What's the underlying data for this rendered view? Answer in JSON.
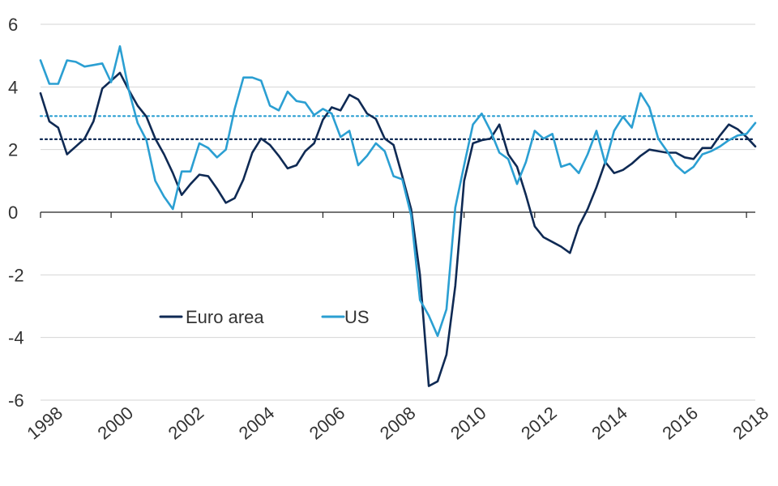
{
  "chart_data": {
    "type": "line",
    "title": "",
    "xlabel": "",
    "ylabel": "",
    "xlim": [
      1998.0,
      2018.25
    ],
    "ylim": [
      -6,
      6
    ],
    "x_ticks": [
      "1998",
      "2000",
      "2002",
      "2004",
      "2006",
      "2008",
      "2010",
      "2012",
      "2014",
      "2016",
      "2018"
    ],
    "y_ticks": [
      "-6",
      "-4",
      "-2",
      "0",
      "2",
      "4",
      "6"
    ],
    "grid": "horizontal",
    "legend_position": "lower-left",
    "series": [
      {
        "name": "Euro area",
        "color": "#0f2a54",
        "x": [
          1998.0,
          1998.25,
          1998.5,
          1998.75,
          1999.0,
          1999.25,
          1999.5,
          1999.75,
          2000.0,
          2000.25,
          2000.5,
          2000.75,
          2001.0,
          2001.25,
          2001.5,
          2001.75,
          2002.0,
          2002.25,
          2002.5,
          2002.75,
          2003.0,
          2003.25,
          2003.5,
          2003.75,
          2004.0,
          2004.25,
          2004.5,
          2004.75,
          2005.0,
          2005.25,
          2005.5,
          2005.75,
          2006.0,
          2006.25,
          2006.5,
          2006.75,
          2007.0,
          2007.25,
          2007.5,
          2007.75,
          2008.0,
          2008.25,
          2008.5,
          2008.75,
          2009.0,
          2009.25,
          2009.5,
          2009.75,
          2010.0,
          2010.25,
          2010.5,
          2010.75,
          2011.0,
          2011.25,
          2011.5,
          2011.75,
          2012.0,
          2012.25,
          2012.5,
          2012.75,
          2013.0,
          2013.25,
          2013.5,
          2013.75,
          2014.0,
          2014.25,
          2014.5,
          2014.75,
          2015.0,
          2015.25,
          2015.5,
          2015.75,
          2016.0,
          2016.25,
          2016.5,
          2016.75,
          2017.0,
          2017.25,
          2017.5,
          2017.75,
          2018.0,
          2018.25
        ],
        "values": [
          3.8,
          2.9,
          2.7,
          1.85,
          2.1,
          2.35,
          2.9,
          3.95,
          4.2,
          4.45,
          3.9,
          3.4,
          3.05,
          2.35,
          1.85,
          1.25,
          0.55,
          0.9,
          1.2,
          1.15,
          0.75,
          0.3,
          0.45,
          1.05,
          1.9,
          2.35,
          2.15,
          1.8,
          1.4,
          1.5,
          1.95,
          2.2,
          2.95,
          3.35,
          3.25,
          3.75,
          3.6,
          3.15,
          2.98,
          2.35,
          2.15,
          1.15,
          0.1,
          -2.0,
          -5.55,
          -5.4,
          -4.55,
          -2.35,
          1.0,
          2.2,
          2.3,
          2.35,
          2.8,
          1.85,
          1.45,
          0.55,
          -0.45,
          -0.8,
          -0.95,
          -1.1,
          -1.3,
          -0.45,
          0.1,
          0.8,
          1.6,
          1.25,
          1.35,
          1.55,
          1.8,
          2.0,
          1.95,
          1.9,
          1.9,
          1.75,
          1.7,
          2.05,
          2.05,
          2.45,
          2.8,
          2.65,
          2.4,
          2.1
        ]
      },
      {
        "name": "US",
        "color": "#2b9fd2",
        "x": [
          1998.0,
          1998.25,
          1998.5,
          1998.75,
          1999.0,
          1999.25,
          1999.5,
          1999.75,
          2000.0,
          2000.25,
          2000.5,
          2000.75,
          2001.0,
          2001.25,
          2001.5,
          2001.75,
          2002.0,
          2002.25,
          2002.5,
          2002.75,
          2003.0,
          2003.25,
          2003.5,
          2003.75,
          2004.0,
          2004.25,
          2004.5,
          2004.75,
          2005.0,
          2005.25,
          2005.5,
          2005.75,
          2006.0,
          2006.25,
          2006.5,
          2006.75,
          2007.0,
          2007.25,
          2007.5,
          2007.75,
          2008.0,
          2008.25,
          2008.5,
          2008.75,
          2009.0,
          2009.25,
          2009.5,
          2009.75,
          2010.0,
          2010.25,
          2010.5,
          2010.75,
          2011.0,
          2011.25,
          2011.5,
          2011.75,
          2012.0,
          2012.25,
          2012.5,
          2012.75,
          2013.0,
          2013.25,
          2013.5,
          2013.75,
          2014.0,
          2014.25,
          2014.5,
          2014.75,
          2015.0,
          2015.25,
          2015.5,
          2015.75,
          2016.0,
          2016.25,
          2016.5,
          2016.75,
          2017.0,
          2017.25,
          2017.5,
          2017.75,
          2018.0,
          2018.25
        ],
        "values": [
          4.85,
          4.1,
          4.1,
          4.85,
          4.8,
          4.65,
          4.7,
          4.75,
          4.15,
          5.3,
          3.9,
          2.85,
          2.3,
          1.0,
          0.5,
          0.1,
          1.3,
          1.3,
          2.2,
          2.05,
          1.75,
          2.0,
          3.3,
          4.3,
          4.3,
          4.2,
          3.4,
          3.25,
          3.85,
          3.55,
          3.5,
          3.1,
          3.3,
          3.15,
          2.4,
          2.6,
          1.5,
          1.8,
          2.2,
          1.95,
          1.15,
          1.05,
          -0.1,
          -2.8,
          -3.3,
          -3.95,
          -3.1,
          0.15,
          1.5,
          2.8,
          3.15,
          2.6,
          1.9,
          1.7,
          0.9,
          1.6,
          2.6,
          2.35,
          2.5,
          1.45,
          1.55,
          1.25,
          1.85,
          2.6,
          1.55,
          2.6,
          3.05,
          2.7,
          3.8,
          3.35,
          2.35,
          1.95,
          1.5,
          1.25,
          1.45,
          1.85,
          1.95,
          2.1,
          2.3,
          2.45,
          2.5,
          2.85
        ]
      }
    ],
    "reference_lines": [
      {
        "series": "Euro area",
        "value": 2.33,
        "style": "dotted"
      },
      {
        "series": "US",
        "value": 3.07,
        "style": "dotted"
      }
    ],
    "colors": {
      "grid": "#d4d4d4",
      "axis": "#222222",
      "text": "#333333"
    }
  }
}
